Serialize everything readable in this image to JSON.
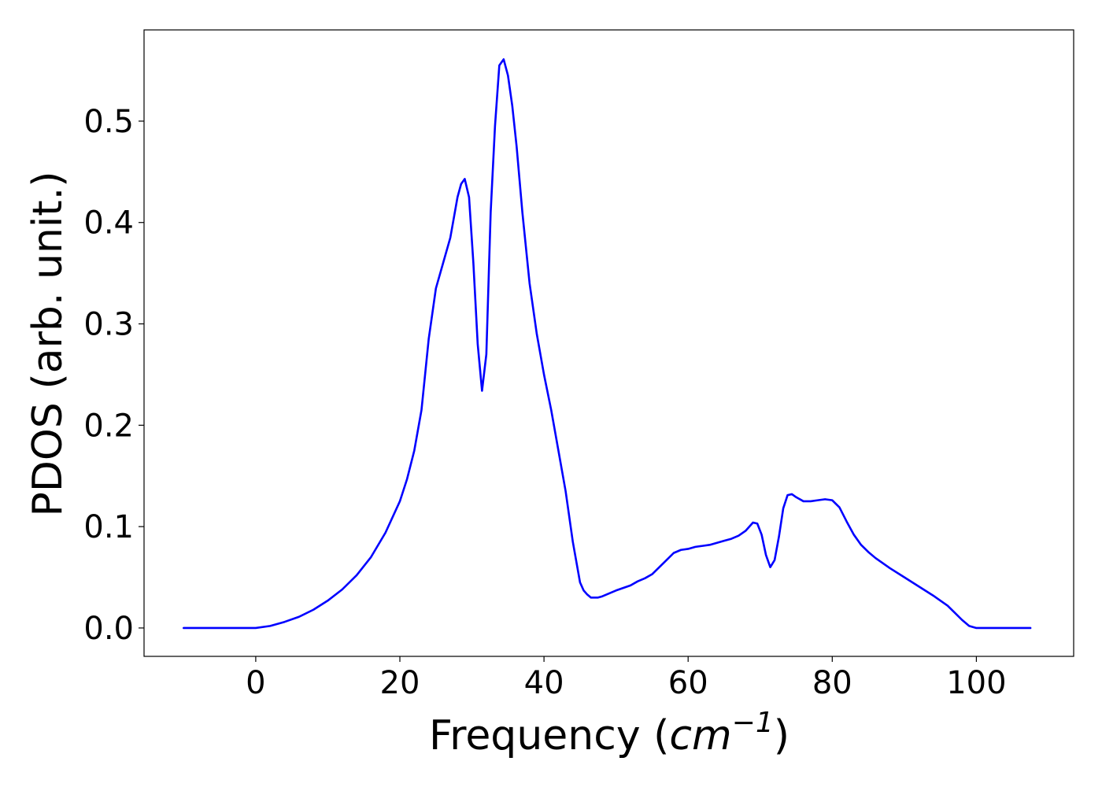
{
  "chart_data": {
    "type": "line",
    "xlabel_prefix": "Frequency (",
    "xlabel_unit": "cm",
    "xlabel_exponent": "−1",
    "xlabel_suffix": ")",
    "ylabel": "PDOS (arb. unit.)",
    "xlim": [
      -15.5,
      113.5
    ],
    "ylim": [
      -0.028,
      0.59
    ],
    "xticks": [
      0,
      20,
      40,
      60,
      80,
      100
    ],
    "xtick_labels": [
      "0",
      "20",
      "40",
      "60",
      "80",
      "100"
    ],
    "yticks": [
      0.0,
      0.1,
      0.2,
      0.3,
      0.4,
      0.5
    ],
    "ytick_labels": [
      "0.0",
      "0.1",
      "0.2",
      "0.3",
      "0.4",
      "0.5"
    ],
    "grid": false,
    "legend": false,
    "series": [
      {
        "color": "#0000ff",
        "x": [
          -10,
          -5,
          0,
          2,
          4,
          6,
          8,
          10,
          12,
          14,
          16,
          18,
          20,
          21,
          22,
          23,
          24,
          25,
          26,
          27,
          28,
          28.5,
          29,
          29.6,
          30.2,
          30.8,
          31.4,
          32,
          32.6,
          33.2,
          33.8,
          34.4,
          35,
          35.6,
          36.2,
          37,
          38,
          39,
          40,
          41,
          42,
          43,
          44,
          45,
          45.5,
          46,
          46.5,
          47,
          47.5,
          48,
          49,
          50,
          52,
          53,
          54,
          55,
          56,
          57,
          58,
          59,
          60,
          61,
          62,
          63,
          64,
          65,
          66,
          67,
          68,
          69,
          69.6,
          70.2,
          70.8,
          71.4,
          72,
          72.6,
          73.2,
          73.8,
          74.4,
          75,
          76,
          77,
          78,
          79,
          80,
          81,
          82,
          83,
          84,
          85,
          86,
          88,
          90,
          92,
          94,
          96,
          97,
          98,
          99,
          100,
          102,
          104,
          106,
          107.5
        ],
        "y": [
          0.0,
          0.0,
          0.0,
          0.002,
          0.006,
          0.011,
          0.018,
          0.027,
          0.038,
          0.052,
          0.07,
          0.094,
          0.125,
          0.147,
          0.175,
          0.215,
          0.285,
          0.335,
          0.36,
          0.385,
          0.425,
          0.438,
          0.443,
          0.425,
          0.36,
          0.28,
          0.234,
          0.27,
          0.41,
          0.495,
          0.555,
          0.561,
          0.545,
          0.515,
          0.475,
          0.41,
          0.34,
          0.29,
          0.25,
          0.215,
          0.175,
          0.135,
          0.085,
          0.045,
          0.037,
          0.033,
          0.03,
          0.03,
          0.03,
          0.031,
          0.034,
          0.037,
          0.042,
          0.046,
          0.049,
          0.053,
          0.06,
          0.067,
          0.074,
          0.077,
          0.078,
          0.08,
          0.081,
          0.082,
          0.084,
          0.086,
          0.088,
          0.091,
          0.096,
          0.104,
          0.103,
          0.092,
          0.072,
          0.06,
          0.067,
          0.09,
          0.118,
          0.131,
          0.132,
          0.129,
          0.125,
          0.125,
          0.126,
          0.127,
          0.126,
          0.119,
          0.105,
          0.092,
          0.082,
          0.075,
          0.069,
          0.059,
          0.05,
          0.041,
          0.032,
          0.022,
          0.015,
          0.008,
          0.002,
          0.0,
          0.0,
          0.0,
          0.0,
          0.0
        ]
      }
    ]
  }
}
